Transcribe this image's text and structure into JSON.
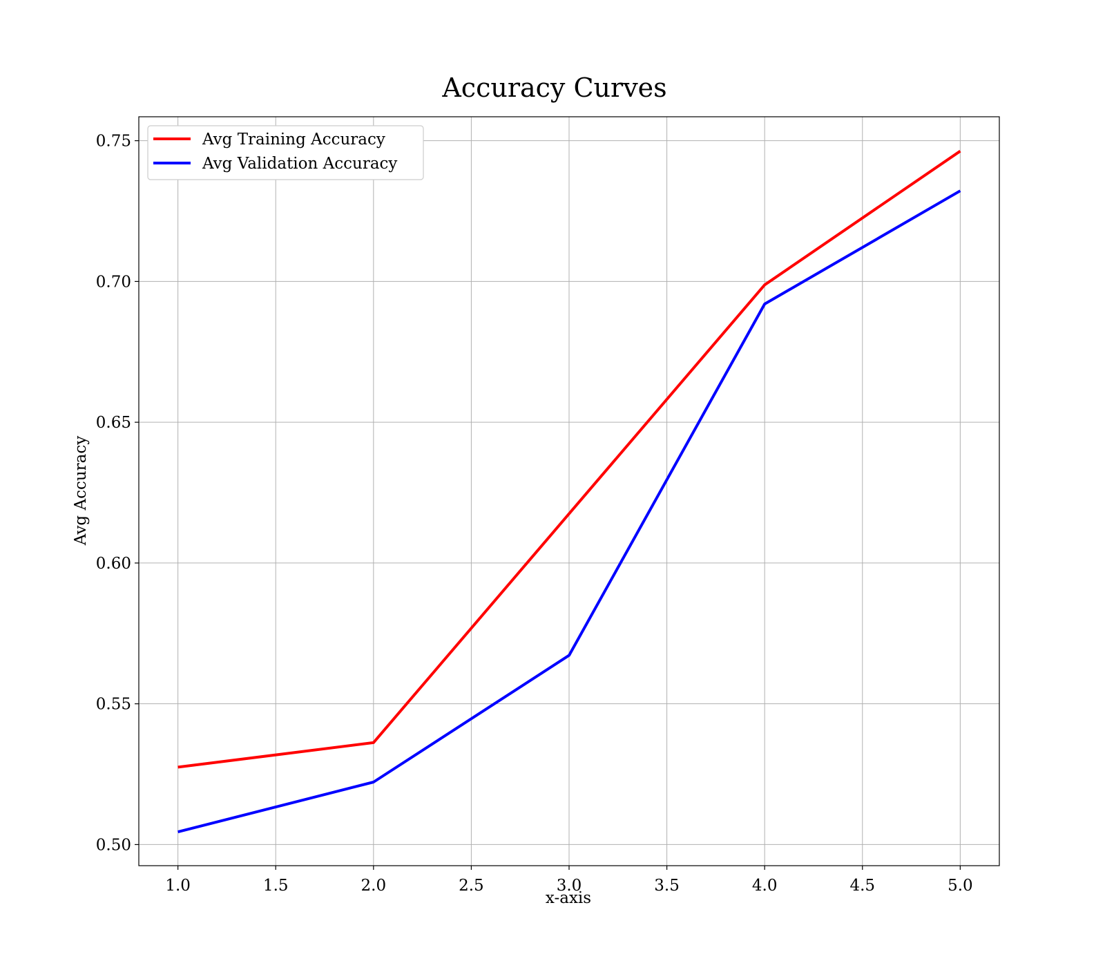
{
  "chart_data": {
    "type": "line",
    "title": "Accuracy Curves",
    "xlabel": "x-axis",
    "ylabel": "Avg Accuracy",
    "x": [
      1.0,
      2.0,
      3.0,
      4.0,
      5.0
    ],
    "xlim": [
      0.8,
      5.2
    ],
    "ylim": [
      0.4925,
      0.7585
    ],
    "x_ticks": [
      "1.0",
      "1.5",
      "2.0",
      "2.5",
      "3.0",
      "3.5",
      "4.0",
      "4.5",
      "5.0"
    ],
    "y_ticks": [
      "0.50",
      "0.55",
      "0.60",
      "0.65",
      "0.70",
      "0.75"
    ],
    "grid": true,
    "legend_position": "top-left",
    "series": [
      {
        "name": "Avg Training Accuracy",
        "color": "#ff0000",
        "values": [
          0.5275,
          0.5362,
          0.6175,
          0.6988,
          0.7463
        ]
      },
      {
        "name": "Avg Validation Accuracy",
        "color": "#0000ff",
        "values": [
          0.5045,
          0.5222,
          0.5672,
          0.692,
          0.7322
        ]
      }
    ]
  }
}
